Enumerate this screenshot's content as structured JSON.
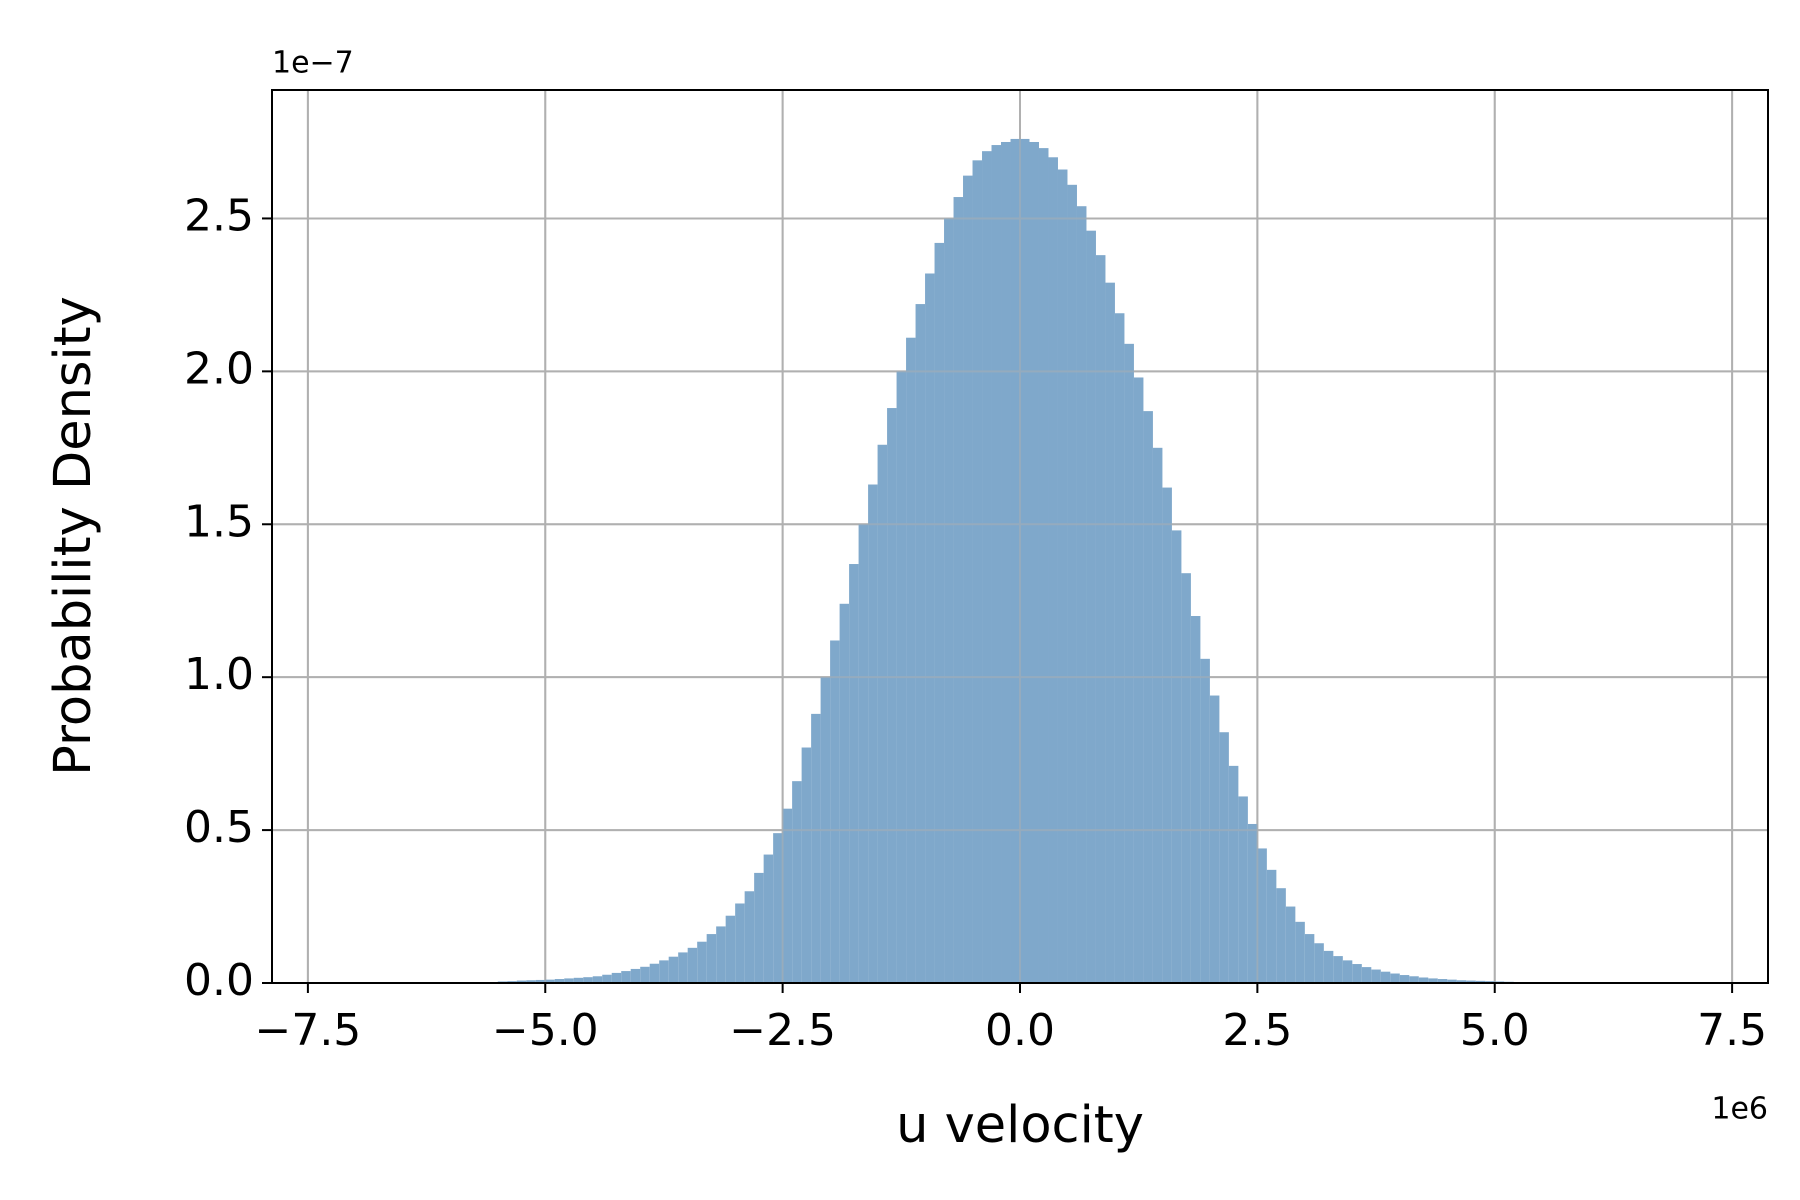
{
  "chart_data": {
    "type": "histogram",
    "xlabel": "u velocity",
    "ylabel": "Probability Density",
    "x_offset_label": "1e6",
    "y_offset_label": "1e−7",
    "color": "#7fa8cb",
    "grid": true,
    "xlim": [
      -7878000,
      7878000
    ],
    "ylim": [
      0,
      2.92e-07
    ],
    "xticks": [
      {
        "value": -7500000,
        "label": "−7.5"
      },
      {
        "value": -5000000,
        "label": "−5.0"
      },
      {
        "value": -2500000,
        "label": "−2.5"
      },
      {
        "value": 0,
        "label": "0.0"
      },
      {
        "value": 2500000,
        "label": "2.5"
      },
      {
        "value": 5000000,
        "label": "5.0"
      },
      {
        "value": 7500000,
        "label": "7.5"
      }
    ],
    "yticks": [
      {
        "value": 0,
        "label": "0.0"
      },
      {
        "value": 5e-08,
        "label": "0.5"
      },
      {
        "value": 1e-07,
        "label": "1.0"
      },
      {
        "value": 1.5e-07,
        "label": "1.5"
      },
      {
        "value": 2e-07,
        "label": "2.0"
      },
      {
        "value": 2.5e-07,
        "label": "2.5"
      }
    ],
    "bins": [
      -5500000,
      -5400000,
      -5300000,
      -5200000,
      -5100000,
      -5000000,
      -4900000,
      -4800000,
      -4700000,
      -4600000,
      -4500000,
      -4400000,
      -4300000,
      -4200000,
      -4100000,
      -4000000,
      -3900000,
      -3800000,
      -3700000,
      -3600000,
      -3500000,
      -3400000,
      -3300000,
      -3200000,
      -3100000,
      -3000000,
      -2900000,
      -2800000,
      -2700000,
      -2600000,
      -2500000,
      -2400000,
      -2300000,
      -2200000,
      -2100000,
      -2000000,
      -1900000,
      -1800000,
      -1700000,
      -1600000,
      -1500000,
      -1400000,
      -1300000,
      -1200000,
      -1100000,
      -1000000,
      -900000,
      -800000,
      -700000,
      -600000,
      -500000,
      -400000,
      -300000,
      -200000,
      -100000,
      0,
      100000,
      200000,
      300000,
      400000,
      500000,
      600000,
      700000,
      800000,
      900000,
      1000000,
      1100000,
      1200000,
      1300000,
      1400000,
      1500000,
      1600000,
      1700000,
      1800000,
      1900000,
      2000000,
      2100000,
      2200000,
      2300000,
      2400000,
      2500000,
      2600000,
      2700000,
      2800000,
      2900000,
      3000000,
      3100000,
      3200000,
      3300000,
      3400000,
      3500000,
      3600000,
      3700000,
      3800000,
      3900000,
      4000000,
      4100000,
      4200000,
      4300000,
      4400000,
      4500000,
      4600000,
      4700000,
      4800000,
      4900000,
      5000000,
      5100000,
      5200000,
      5300000,
      5400000,
      5500000
    ],
    "values": [
      5e-10,
      6e-10,
      8e-10,
      9e-10,
      1e-09,
      1.1e-09,
      1.3e-09,
      1.5e-09,
      1.7e-09,
      1.9e-09,
      2.2e-09,
      2.7e-09,
      3.3e-09,
      3.9e-09,
      4.6e-09,
      5.3e-09,
      6.3e-09,
      7.4e-09,
      8.6e-09,
      1e-08,
      1.15e-08,
      1.35e-08,
      1.6e-08,
      1.85e-08,
      2.2e-08,
      2.6e-08,
      3e-08,
      3.6e-08,
      4.2e-08,
      4.9e-08,
      5.7e-08,
      6.6e-08,
      7.7e-08,
      8.8e-08,
      1e-07,
      1.12e-07,
      1.24e-07,
      1.37e-07,
      1.5e-07,
      1.63e-07,
      1.76e-07,
      1.88e-07,
      2e-07,
      2.11e-07,
      2.22e-07,
      2.32e-07,
      2.42e-07,
      2.5e-07,
      2.57e-07,
      2.64e-07,
      2.69e-07,
      2.72e-07,
      2.74e-07,
      2.75e-07,
      2.76e-07,
      2.76e-07,
      2.75e-07,
      2.73e-07,
      2.7e-07,
      2.66e-07,
      2.61e-07,
      2.54e-07,
      2.46e-07,
      2.38e-07,
      2.29e-07,
      2.19e-07,
      2.09e-07,
      1.98e-07,
      1.87e-07,
      1.75e-07,
      1.62e-07,
      1.48e-07,
      1.34e-07,
      1.2e-07,
      1.06e-07,
      9.4e-08,
      8.2e-08,
      7.1e-08,
      6.1e-08,
      5.2e-08,
      4.4e-08,
      3.7e-08,
      3.1e-08,
      2.5e-08,
      2e-08,
      1.6e-08,
      1.3e-08,
      1.05e-08,
      8.8e-09,
      7.4e-09,
      6.2e-09,
      5.2e-09,
      4.4e-09,
      3.7e-09,
      3.1e-09,
      2.6e-09,
      2.2e-09,
      1.8e-09,
      1.5e-09,
      1.3e-09,
      1.1e-09,
      9e-10,
      8e-10,
      7e-10,
      6e-10,
      5e-10,
      4e-10,
      3e-10,
      2e-10,
      2e-10
    ]
  }
}
